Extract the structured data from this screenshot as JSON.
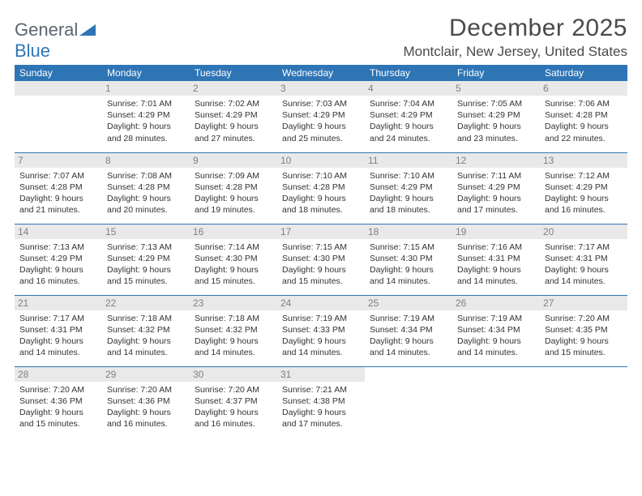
{
  "logo": {
    "text_general": "General",
    "text_blue": "Blue"
  },
  "title": "December 2025",
  "location": "Montclair, New Jersey, United States",
  "theme": {
    "header_bg": "#2e75b6",
    "header_fg": "#ffffff",
    "daynum_bg": "#e9e9e9",
    "daynum_fg": "#808080",
    "border_color": "#2e75b6",
    "text_color": "#333333",
    "title_color": "#4a4a4a"
  },
  "days_of_week": [
    "Sunday",
    "Monday",
    "Tuesday",
    "Wednesday",
    "Thursday",
    "Friday",
    "Saturday"
  ],
  "weeks": [
    [
      {
        "day": "",
        "sunrise": "",
        "sunset": "",
        "daylight": ""
      },
      {
        "day": "1",
        "sunrise": "Sunrise: 7:01 AM",
        "sunset": "Sunset: 4:29 PM",
        "daylight": "Daylight: 9 hours and 28 minutes."
      },
      {
        "day": "2",
        "sunrise": "Sunrise: 7:02 AM",
        "sunset": "Sunset: 4:29 PM",
        "daylight": "Daylight: 9 hours and 27 minutes."
      },
      {
        "day": "3",
        "sunrise": "Sunrise: 7:03 AM",
        "sunset": "Sunset: 4:29 PM",
        "daylight": "Daylight: 9 hours and 25 minutes."
      },
      {
        "day": "4",
        "sunrise": "Sunrise: 7:04 AM",
        "sunset": "Sunset: 4:29 PM",
        "daylight": "Daylight: 9 hours and 24 minutes."
      },
      {
        "day": "5",
        "sunrise": "Sunrise: 7:05 AM",
        "sunset": "Sunset: 4:29 PM",
        "daylight": "Daylight: 9 hours and 23 minutes."
      },
      {
        "day": "6",
        "sunrise": "Sunrise: 7:06 AM",
        "sunset": "Sunset: 4:28 PM",
        "daylight": "Daylight: 9 hours and 22 minutes."
      }
    ],
    [
      {
        "day": "7",
        "sunrise": "Sunrise: 7:07 AM",
        "sunset": "Sunset: 4:28 PM",
        "daylight": "Daylight: 9 hours and 21 minutes."
      },
      {
        "day": "8",
        "sunrise": "Sunrise: 7:08 AM",
        "sunset": "Sunset: 4:28 PM",
        "daylight": "Daylight: 9 hours and 20 minutes."
      },
      {
        "day": "9",
        "sunrise": "Sunrise: 7:09 AM",
        "sunset": "Sunset: 4:28 PM",
        "daylight": "Daylight: 9 hours and 19 minutes."
      },
      {
        "day": "10",
        "sunrise": "Sunrise: 7:10 AM",
        "sunset": "Sunset: 4:28 PM",
        "daylight": "Daylight: 9 hours and 18 minutes."
      },
      {
        "day": "11",
        "sunrise": "Sunrise: 7:10 AM",
        "sunset": "Sunset: 4:29 PM",
        "daylight": "Daylight: 9 hours and 18 minutes."
      },
      {
        "day": "12",
        "sunrise": "Sunrise: 7:11 AM",
        "sunset": "Sunset: 4:29 PM",
        "daylight": "Daylight: 9 hours and 17 minutes."
      },
      {
        "day": "13",
        "sunrise": "Sunrise: 7:12 AM",
        "sunset": "Sunset: 4:29 PM",
        "daylight": "Daylight: 9 hours and 16 minutes."
      }
    ],
    [
      {
        "day": "14",
        "sunrise": "Sunrise: 7:13 AM",
        "sunset": "Sunset: 4:29 PM",
        "daylight": "Daylight: 9 hours and 16 minutes."
      },
      {
        "day": "15",
        "sunrise": "Sunrise: 7:13 AM",
        "sunset": "Sunset: 4:29 PM",
        "daylight": "Daylight: 9 hours and 15 minutes."
      },
      {
        "day": "16",
        "sunrise": "Sunrise: 7:14 AM",
        "sunset": "Sunset: 4:30 PM",
        "daylight": "Daylight: 9 hours and 15 minutes."
      },
      {
        "day": "17",
        "sunrise": "Sunrise: 7:15 AM",
        "sunset": "Sunset: 4:30 PM",
        "daylight": "Daylight: 9 hours and 15 minutes."
      },
      {
        "day": "18",
        "sunrise": "Sunrise: 7:15 AM",
        "sunset": "Sunset: 4:30 PM",
        "daylight": "Daylight: 9 hours and 14 minutes."
      },
      {
        "day": "19",
        "sunrise": "Sunrise: 7:16 AM",
        "sunset": "Sunset: 4:31 PM",
        "daylight": "Daylight: 9 hours and 14 minutes."
      },
      {
        "day": "20",
        "sunrise": "Sunrise: 7:17 AM",
        "sunset": "Sunset: 4:31 PM",
        "daylight": "Daylight: 9 hours and 14 minutes."
      }
    ],
    [
      {
        "day": "21",
        "sunrise": "Sunrise: 7:17 AM",
        "sunset": "Sunset: 4:31 PM",
        "daylight": "Daylight: 9 hours and 14 minutes."
      },
      {
        "day": "22",
        "sunrise": "Sunrise: 7:18 AM",
        "sunset": "Sunset: 4:32 PM",
        "daylight": "Daylight: 9 hours and 14 minutes."
      },
      {
        "day": "23",
        "sunrise": "Sunrise: 7:18 AM",
        "sunset": "Sunset: 4:32 PM",
        "daylight": "Daylight: 9 hours and 14 minutes."
      },
      {
        "day": "24",
        "sunrise": "Sunrise: 7:19 AM",
        "sunset": "Sunset: 4:33 PM",
        "daylight": "Daylight: 9 hours and 14 minutes."
      },
      {
        "day": "25",
        "sunrise": "Sunrise: 7:19 AM",
        "sunset": "Sunset: 4:34 PM",
        "daylight": "Daylight: 9 hours and 14 minutes."
      },
      {
        "day": "26",
        "sunrise": "Sunrise: 7:19 AM",
        "sunset": "Sunset: 4:34 PM",
        "daylight": "Daylight: 9 hours and 14 minutes."
      },
      {
        "day": "27",
        "sunrise": "Sunrise: 7:20 AM",
        "sunset": "Sunset: 4:35 PM",
        "daylight": "Daylight: 9 hours and 15 minutes."
      }
    ],
    [
      {
        "day": "28",
        "sunrise": "Sunrise: 7:20 AM",
        "sunset": "Sunset: 4:36 PM",
        "daylight": "Daylight: 9 hours and 15 minutes."
      },
      {
        "day": "29",
        "sunrise": "Sunrise: 7:20 AM",
        "sunset": "Sunset: 4:36 PM",
        "daylight": "Daylight: 9 hours and 16 minutes."
      },
      {
        "day": "30",
        "sunrise": "Sunrise: 7:20 AM",
        "sunset": "Sunset: 4:37 PM",
        "daylight": "Daylight: 9 hours and 16 minutes."
      },
      {
        "day": "31",
        "sunrise": "Sunrise: 7:21 AM",
        "sunset": "Sunset: 4:38 PM",
        "daylight": "Daylight: 9 hours and 17 minutes."
      },
      {
        "day": "",
        "sunrise": "",
        "sunset": "",
        "daylight": ""
      },
      {
        "day": "",
        "sunrise": "",
        "sunset": "",
        "daylight": ""
      },
      {
        "day": "",
        "sunrise": "",
        "sunset": "",
        "daylight": ""
      }
    ]
  ]
}
